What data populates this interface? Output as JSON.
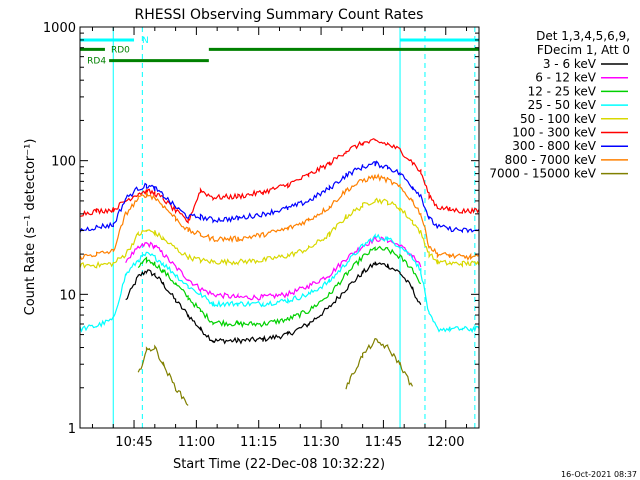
{
  "chart_data": {
    "type": "line",
    "title": "RHESSI Observing Summary Count Rates",
    "xlabel": "Start Time (22-Dec-08 10:32:22)",
    "ylabel": "Count Rate (s⁻¹ detector⁻¹)",
    "yscale": "log",
    "ylim": [
      1,
      1000
    ],
    "xlim": [
      "10:32",
      "12:08"
    ],
    "x_ticks": [
      "10:45",
      "11:00",
      "11:15",
      "11:30",
      "11:45",
      "12:00"
    ],
    "y_ticks": [
      "1",
      "10",
      "100",
      "1000"
    ],
    "legend_header": [
      "Det 1,3,4,5,6,9,",
      "FDecim 1, Att 0"
    ],
    "legend_position": "right",
    "timestamp": "16-Oct-2021 08:37",
    "x_times": [
      "10:32",
      "10:36",
      "10:40",
      "10:43",
      "10:46",
      "10:48",
      "10:50",
      "10:52",
      "10:55",
      "10:58",
      "11:01",
      "11:04",
      "11:10",
      "11:16",
      "11:22",
      "11:27",
      "11:32",
      "11:36",
      "11:40",
      "11:43",
      "11:46",
      "11:49",
      "11:52",
      "11:54",
      "11:56",
      "11:58",
      "12:01",
      "12:04",
      "12:06",
      "12:08"
    ],
    "series": [
      {
        "name": "3 - 6 keV",
        "color": "#000000",
        "values": [
          null,
          null,
          null,
          9,
          13.5,
          15,
          14,
          12,
          9,
          7,
          5.5,
          4.5,
          4.5,
          4.6,
          5,
          6,
          8,
          11,
          14.5,
          17,
          16.5,
          14.5,
          11,
          8,
          null,
          null,
          null,
          null,
          null,
          null
        ]
      },
      {
        "name": "6 - 12 keV",
        "color": "#ff00ff",
        "values": [
          null,
          null,
          null,
          18,
          22,
          24,
          23,
          20,
          16,
          13,
          11,
          10,
          9.5,
          9.5,
          10,
          11.5,
          14,
          18.5,
          23,
          26,
          25.5,
          23,
          19.5,
          16,
          null,
          null,
          null,
          null,
          null,
          null
        ]
      },
      {
        "name": "12 - 25 keV",
        "color": "#00d000",
        "values": [
          null,
          null,
          null,
          null,
          16,
          18,
          17,
          15,
          12,
          9.5,
          7.5,
          6.2,
          6,
          6,
          6.5,
          7.5,
          10,
          14,
          19,
          22,
          21.5,
          19,
          15.5,
          12,
          null,
          null,
          null,
          null,
          null,
          null
        ]
      },
      {
        "name": "25 - 50 keV",
        "color": "#00ffff",
        "values": [
          5.5,
          5.8,
          6.5,
          14,
          18,
          20,
          19,
          17,
          14,
          11.5,
          10,
          8.5,
          8.5,
          8.5,
          9,
          10,
          12.5,
          17,
          23,
          27,
          26,
          23,
          19,
          15,
          7,
          5.5,
          5.5,
          5.5,
          5.5,
          5.5
        ]
      },
      {
        "name": "50 - 100 keV",
        "color": "#d8d800",
        "values": [
          16.5,
          16.5,
          17,
          20,
          28,
          30,
          29,
          26,
          22,
          19,
          18,
          17.5,
          17.5,
          18,
          19.5,
          22,
          28,
          38,
          46,
          51,
          49,
          44,
          35,
          29,
          20,
          17.5,
          17,
          17,
          17,
          17
        ]
      },
      {
        "name": "100 - 300 keV",
        "color": "#ff0000",
        "values": [
          40,
          42,
          43,
          50,
          57,
          59,
          57,
          52,
          42,
          35,
          60,
          53,
          54,
          58,
          66,
          78,
          95,
          118,
          135,
          140,
          133,
          120,
          97,
          82,
          55,
          45,
          43,
          42,
          42,
          42
        ]
      },
      {
        "name": "300 - 800 keV",
        "color": "#0000ff",
        "values": [
          30,
          32,
          33,
          52,
          62,
          65,
          62,
          55,
          45,
          38,
          38,
          36,
          37,
          40,
          44,
          50,
          62,
          78,
          90,
          95,
          90,
          80,
          64,
          55,
          37,
          32,
          31,
          30,
          30,
          30
        ]
      },
      {
        "name": "800 - 7000 keV",
        "color": "#ff8000",
        "values": [
          19,
          20,
          21,
          40,
          52,
          56,
          53,
          46,
          37,
          30,
          28,
          26,
          26,
          28,
          31,
          36,
          45,
          60,
          71,
          76,
          72,
          63,
          50,
          40,
          23,
          20,
          19.5,
          19,
          19,
          19
        ]
      },
      {
        "name": "7000 - 15000 keV",
        "color": "#808000",
        "values": [
          null,
          null,
          null,
          null,
          2.5,
          3.8,
          4,
          3,
          2,
          1.5,
          null,
          null,
          null,
          null,
          null,
          null,
          null,
          2,
          3.5,
          4.5,
          4,
          3,
          2,
          null,
          null,
          null,
          null,
          null,
          null,
          null
        ]
      }
    ],
    "flags": [
      {
        "label": "N",
        "color": "#00ffff",
        "level": 800,
        "segments": [
          [
            "10:32",
            "10:45"
          ],
          [
            "11:49",
            "12:08"
          ]
        ]
      },
      {
        "label": "RD0",
        "color": "#008000",
        "level": 680,
        "segments": [
          [
            "10:32",
            "10:38"
          ],
          [
            "11:03",
            "12:08"
          ]
        ]
      },
      {
        "label": "RD4",
        "color": "#008000",
        "level": 560,
        "segments": [
          [
            "10:39",
            "11:03"
          ]
        ]
      }
    ],
    "vlines": [
      {
        "time": "10:40",
        "color": "#00ffff",
        "style": "solid"
      },
      {
        "time": "10:47",
        "color": "#00ffff",
        "style": "dashed"
      },
      {
        "time": "11:49",
        "color": "#00ffff",
        "style": "solid"
      },
      {
        "time": "11:55",
        "color": "#00ffff",
        "style": "dashed"
      },
      {
        "time": "12:07",
        "color": "#00ffff",
        "style": "dashed"
      }
    ]
  }
}
